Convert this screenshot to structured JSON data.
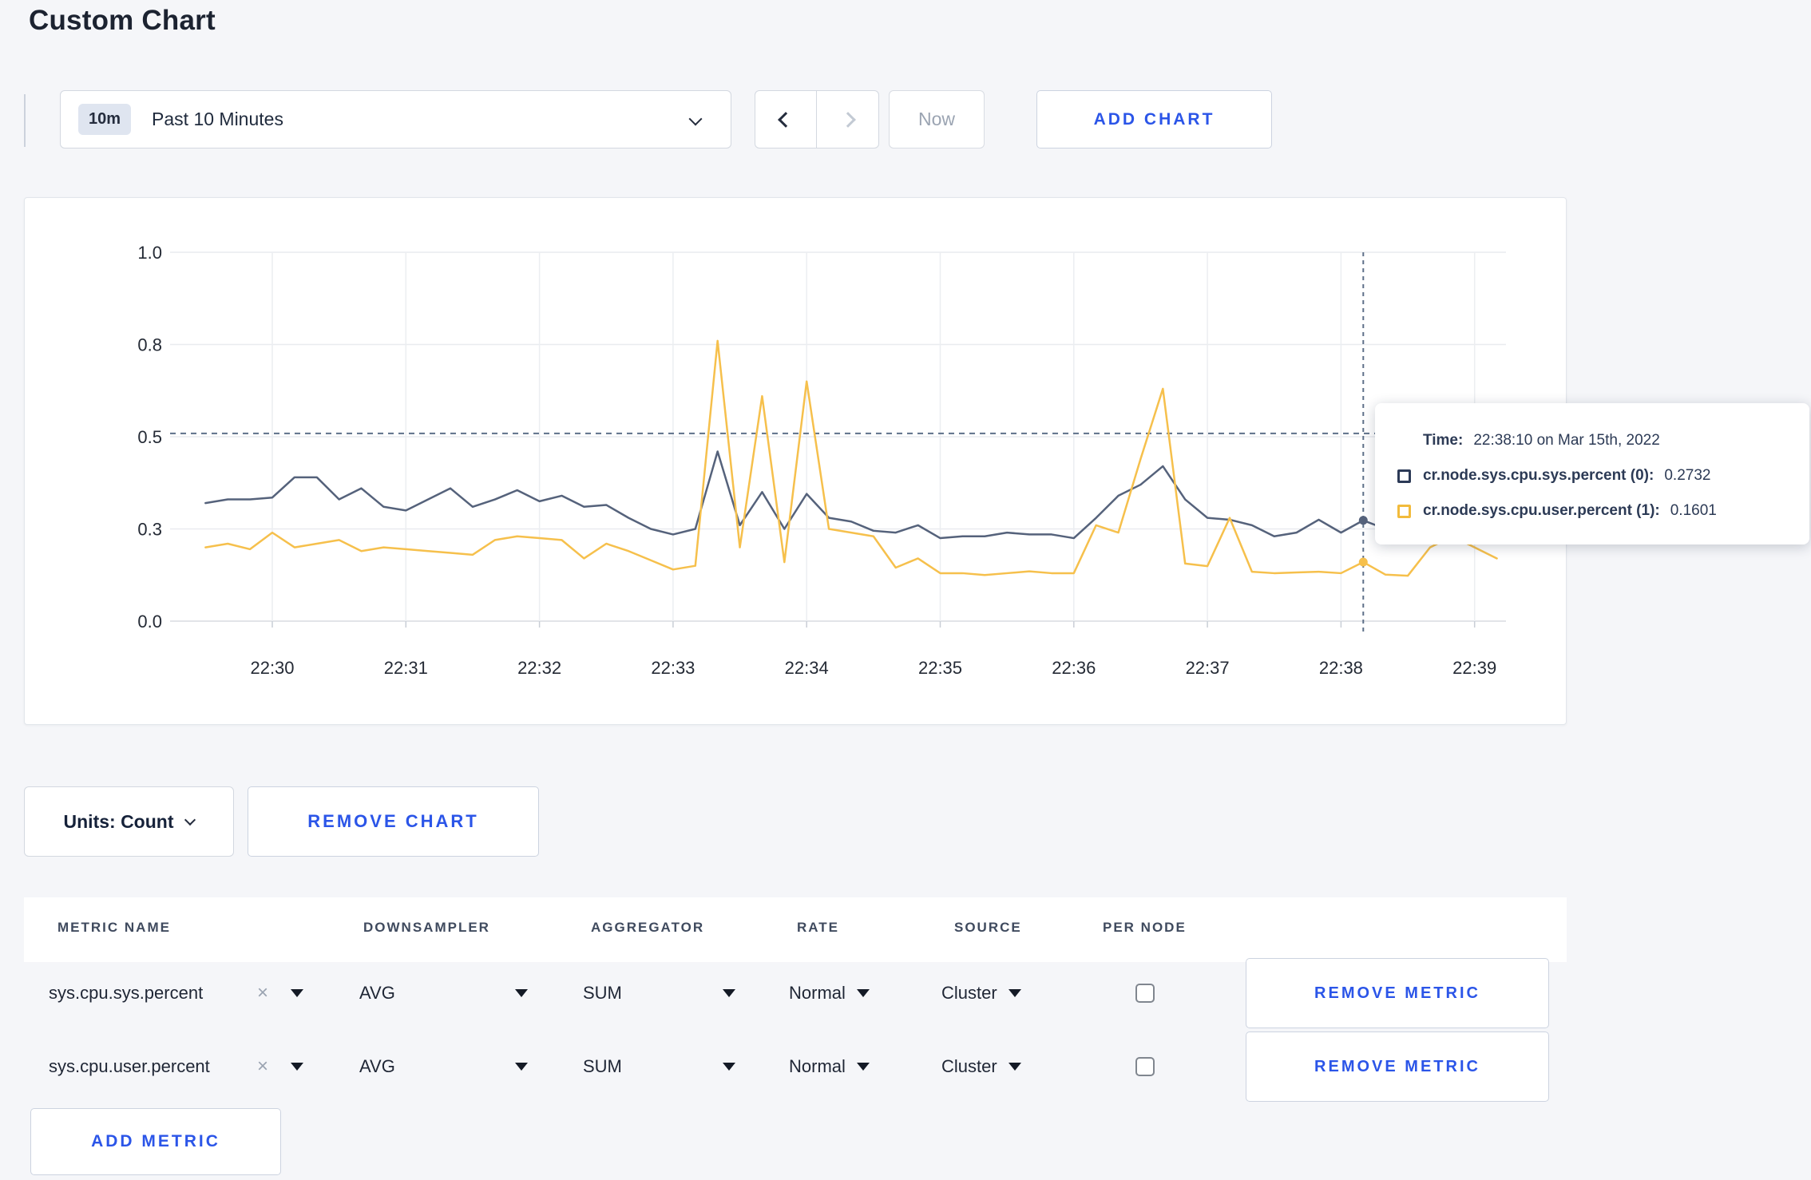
{
  "page": {
    "title": "Custom Chart"
  },
  "toolbar": {
    "timeframe": {
      "badge": "10m",
      "label": "Past 10 Minutes"
    },
    "now_label": "Now",
    "add_chart_label": "ADD CHART"
  },
  "chart_controls": {
    "units_label": "Units: Count",
    "remove_chart_label": "REMOVE CHART"
  },
  "tooltip": {
    "time_label": "Time:",
    "time_value": "22:38:10 on Mar 15th, 2022",
    "sys_label": "cr.node.sys.cpu.sys.percent (0):",
    "sys_value": "0.2732",
    "user_label": "cr.node.sys.cpu.user.percent (1):",
    "user_value": "0.1601"
  },
  "icons": {
    "clear_x": "×"
  },
  "metrics_table": {
    "headers": [
      "METRIC NAME",
      "DOWNSAMPLER",
      "AGGREGATOR",
      "RATE",
      "SOURCE",
      "PER NODE"
    ],
    "rows": [
      {
        "metric": "sys.cpu.sys.percent",
        "downsampler": "AVG",
        "aggregator": "SUM",
        "rate": "Normal",
        "source": "Cluster",
        "per_node_checked": false,
        "remove_label": "REMOVE METRIC"
      },
      {
        "metric": "sys.cpu.user.percent",
        "downsampler": "AVG",
        "aggregator": "SUM",
        "rate": "Normal",
        "source": "Cluster",
        "per_node_checked": false,
        "remove_label": "REMOVE METRIC"
      }
    ],
    "add_metric_label": "ADD METRIC"
  },
  "chart_data": {
    "type": "line",
    "title": "",
    "xlabel": "",
    "ylabel": "",
    "ylim": [
      0,
      1
    ],
    "grid": true,
    "legend_position": "tooltip",
    "y_ticks": [
      {
        "value": 0,
        "label": "0.0"
      },
      {
        "value": 0.25,
        "label": "0.3"
      },
      {
        "value": 0.5,
        "label": "0.5"
      },
      {
        "value": 0.75,
        "label": "0.8"
      },
      {
        "value": 1,
        "label": "1.0"
      }
    ],
    "x_ticks": [
      "22:30",
      "22:31",
      "22:32",
      "22:33",
      "22:34",
      "22:35",
      "22:36",
      "22:37",
      "22:38",
      "22:39"
    ],
    "times": [
      "22:29:30",
      "22:29:40",
      "22:29:50",
      "22:30:00",
      "22:30:10",
      "22:30:20",
      "22:30:30",
      "22:30:40",
      "22:30:50",
      "22:31:00",
      "22:31:10",
      "22:31:20",
      "22:31:30",
      "22:31:40",
      "22:31:50",
      "22:32:00",
      "22:32:10",
      "22:32:20",
      "22:32:30",
      "22:32:40",
      "22:32:50",
      "22:33:00",
      "22:33:10",
      "22:33:20",
      "22:33:30",
      "22:33:40",
      "22:33:50",
      "22:34:00",
      "22:34:10",
      "22:34:20",
      "22:34:30",
      "22:34:40",
      "22:34:50",
      "22:35:00",
      "22:35:10",
      "22:35:20",
      "22:35:30",
      "22:35:40",
      "22:35:50",
      "22:36:00",
      "22:36:10",
      "22:36:20",
      "22:36:30",
      "22:36:40",
      "22:36:50",
      "22:37:00",
      "22:37:10",
      "22:37:20",
      "22:37:30",
      "22:37:40",
      "22:37:50",
      "22:38:00",
      "22:38:10",
      "22:38:20",
      "22:38:30",
      "22:38:40",
      "22:38:50",
      "22:39:00",
      "22:39:10"
    ],
    "series": [
      {
        "name": "cr.node.sys.cpu.sys.percent (0)",
        "color": "#55627b",
        "values": [
          0.32,
          0.33,
          0.33,
          0.335,
          0.39,
          0.39,
          0.33,
          0.36,
          0.31,
          0.3,
          0.33,
          0.36,
          0.31,
          0.33,
          0.355,
          0.325,
          0.34,
          0.31,
          0.315,
          0.28,
          0.25,
          0.235,
          0.25,
          0.46,
          0.26,
          0.35,
          0.25,
          0.345,
          0.28,
          0.27,
          0.245,
          0.24,
          0.26,
          0.225,
          0.23,
          0.23,
          0.24,
          0.235,
          0.235,
          0.225,
          0.28,
          0.34,
          0.37,
          0.42,
          0.33,
          0.28,
          0.275,
          0.26,
          0.23,
          0.24,
          0.275,
          0.24,
          0.2732,
          0.25,
          0.26,
          0.27,
          0.265,
          0.28,
          0.27
        ]
      },
      {
        "name": "cr.node.sys.cpu.user.percent (1)",
        "color": "#f6c04c",
        "values": [
          0.2,
          0.21,
          0.195,
          0.24,
          0.2,
          0.21,
          0.22,
          0.19,
          0.2,
          0.195,
          0.19,
          0.185,
          0.18,
          0.22,
          0.23,
          0.225,
          0.22,
          0.17,
          0.21,
          0.19,
          0.165,
          0.14,
          0.15,
          0.76,
          0.2,
          0.61,
          0.16,
          0.65,
          0.25,
          0.24,
          0.23,
          0.145,
          0.17,
          0.13,
          0.13,
          0.125,
          0.13,
          0.135,
          0.13,
          0.13,
          0.26,
          0.24,
          0.44,
          0.63,
          0.156,
          0.149,
          0.28,
          0.134,
          0.13,
          0.132,
          0.134,
          0.13,
          0.1601,
          0.126,
          0.123,
          0.2,
          0.23,
          0.2,
          0.17
        ]
      }
    ],
    "crosshair": {
      "time": "22:38:10",
      "hline_value": 0.509,
      "dots": [
        {
          "series": 0,
          "value": 0.2732
        },
        {
          "series": 1,
          "value": 0.1601
        }
      ]
    }
  }
}
